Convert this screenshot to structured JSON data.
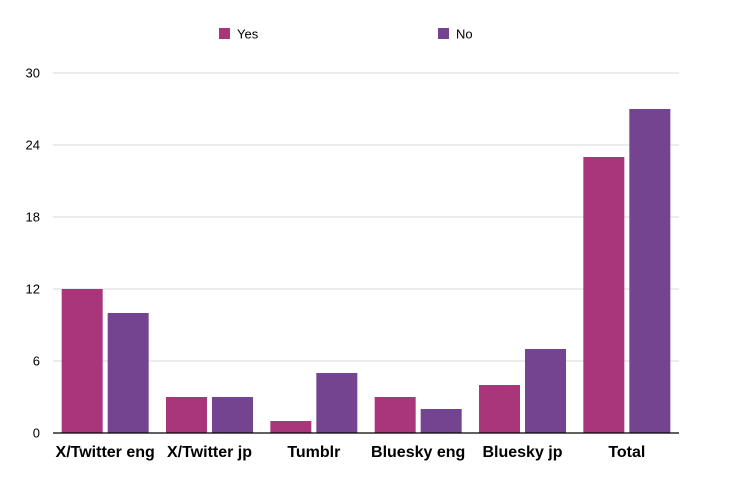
{
  "chart_data": {
    "type": "bar",
    "title": "",
    "xlabel": "",
    "ylabel": "",
    "categories": [
      "X/Twitter eng",
      "X/Twitter jp",
      "Tumblr",
      "Bluesky eng",
      "Bluesky jp",
      "Total"
    ],
    "series": [
      {
        "name": "Yes",
        "color": "#a9367a",
        "values": [
          12,
          3,
          1,
          3,
          4,
          23
        ]
      },
      {
        "name": "No",
        "color": "#744490",
        "values": [
          10,
          3,
          5,
          2,
          7,
          27
        ]
      }
    ],
    "ylim": [
      0,
      30
    ],
    "yticks": [
      0,
      6,
      12,
      18,
      24,
      30
    ],
    "grid": true,
    "legend_position": "top"
  }
}
